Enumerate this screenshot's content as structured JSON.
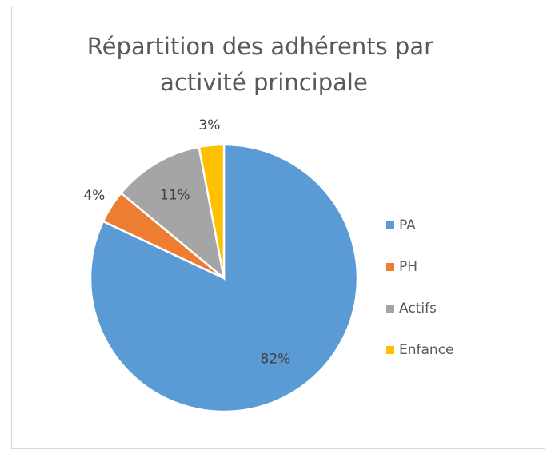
{
  "chart_data": {
    "type": "pie",
    "title": "Répartition des adhérents par activité principale",
    "categories": [
      "PA",
      "PH",
      "Actifs",
      "Enfance"
    ],
    "values": [
      82,
      4,
      11,
      3
    ],
    "value_labels": [
      "82%",
      "4%",
      "11%",
      "3%"
    ],
    "colors": [
      "#5b9bd5",
      "#ed7d31",
      "#a5a5a5",
      "#ffc000"
    ],
    "legend": "right"
  }
}
